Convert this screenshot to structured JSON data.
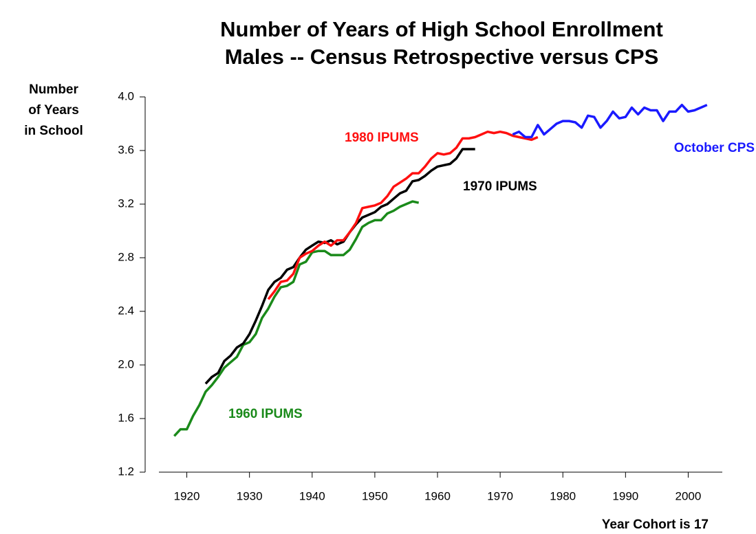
{
  "chart_data": {
    "type": "line",
    "title": [
      "Number of Years of High School Enrollment",
      "Males -- Census Retrospective versus CPS"
    ],
    "ylabel": [
      "Number",
      "of Years",
      "in School"
    ],
    "xlabel": "Year Cohort is 17",
    "xlim": [
      1915,
      2005
    ],
    "xticks": [
      1920,
      1930,
      1940,
      1950,
      1960,
      1970,
      1980,
      1990,
      2000
    ],
    "ylim": [
      1.2,
      4.0
    ],
    "yticks": [
      1.2,
      1.6,
      {
        "value": 2,
        "label": "2.0"
      },
      2.4,
      2.8,
      3.2,
      3.6,
      {
        "value": 4,
        "label": "4.0"
      }
    ],
    "grid": false,
    "series": [
      {
        "name": "1960 IPUMS",
        "color": "#1a8a1a",
        "x": [
          1918,
          1919,
          1920,
          1921,
          1922,
          1923,
          1924,
          1925,
          1926,
          1927,
          1928,
          1929,
          1930,
          1931,
          1932,
          1933,
          1934,
          1935,
          1936,
          1937,
          1938,
          1939,
          1940,
          1941,
          1942,
          1943,
          1944,
          1945,
          1946,
          1947,
          1948,
          1949,
          1950,
          1951,
          1952,
          1953,
          1954,
          1955,
          1956,
          1957
        ],
        "values": [
          1.47,
          1.52,
          1.52,
          1.62,
          1.7,
          1.8,
          1.85,
          1.91,
          1.98,
          2.02,
          2.06,
          2.15,
          2.17,
          2.23,
          2.35,
          2.42,
          2.51,
          2.58,
          2.59,
          2.62,
          2.75,
          2.77,
          2.84,
          2.85,
          2.85,
          2.82,
          2.82,
          2.82,
          2.86,
          2.94,
          3.03,
          3.06,
          3.08,
          3.08,
          3.13,
          3.15,
          3.18,
          3.2,
          3.22,
          3.21
        ]
      },
      {
        "name": "1970 IPUMS",
        "color": "#000000",
        "x": [
          1923,
          1924,
          1925,
          1926,
          1927,
          1928,
          1929,
          1930,
          1931,
          1932,
          1933,
          1934,
          1935,
          1936,
          1937,
          1938,
          1939,
          1940,
          1941,
          1942,
          1943,
          1944,
          1945,
          1946,
          1947,
          1948,
          1949,
          1950,
          1951,
          1952,
          1953,
          1954,
          1955,
          1956,
          1957,
          1958,
          1959,
          1960,
          1961,
          1962,
          1963,
          1964,
          1965,
          1966
        ],
        "values": [
          1.86,
          1.91,
          1.94,
          2.03,
          2.07,
          2.13,
          2.16,
          2.23,
          2.33,
          2.44,
          2.56,
          2.62,
          2.65,
          2.71,
          2.73,
          2.8,
          2.86,
          2.89,
          2.92,
          2.91,
          2.93,
          2.9,
          2.92,
          2.99,
          3.05,
          3.1,
          3.12,
          3.14,
          3.18,
          3.2,
          3.24,
          3.28,
          3.3,
          3.37,
          3.38,
          3.41,
          3.45,
          3.48,
          3.49,
          3.5,
          3.54,
          3.61,
          3.61,
          3.61
        ]
      },
      {
        "name": "1980 IPUMS",
        "color": "#ff1010",
        "x": [
          1933,
          1934,
          1935,
          1936,
          1937,
          1938,
          1939,
          1940,
          1941,
          1942,
          1943,
          1944,
          1945,
          1946,
          1947,
          1948,
          1949,
          1950,
          1951,
          1952,
          1953,
          1954,
          1955,
          1956,
          1957,
          1958,
          1959,
          1960,
          1961,
          1962,
          1963,
          1964,
          1965,
          1966,
          1967,
          1968,
          1969,
          1970,
          1971,
          1972,
          1973,
          1974,
          1975,
          1976
        ],
        "values": [
          2.49,
          2.55,
          2.62,
          2.63,
          2.68,
          2.8,
          2.83,
          2.85,
          2.89,
          2.92,
          2.89,
          2.93,
          2.93,
          2.99,
          3.06,
          3.17,
          3.18,
          3.19,
          3.21,
          3.26,
          3.33,
          3.36,
          3.39,
          3.43,
          3.43,
          3.48,
          3.54,
          3.58,
          3.57,
          3.58,
          3.62,
          3.69,
          3.69,
          3.7,
          3.72,
          3.74,
          3.73,
          3.74,
          3.73,
          3.71,
          3.7,
          3.69,
          3.68,
          3.7
        ]
      },
      {
        "name": "October CPS",
        "color": "#1a1aff",
        "x": [
          1972,
          1973,
          1974,
          1975,
          1976,
          1977,
          1978,
          1979,
          1980,
          1981,
          1982,
          1983,
          1984,
          1985,
          1986,
          1987,
          1988,
          1989,
          1990,
          1991,
          1992,
          1993,
          1994,
          1995,
          1996,
          1997,
          1998,
          1999,
          2000,
          2001,
          2002,
          2003
        ],
        "values": [
          3.72,
          3.74,
          3.7,
          3.7,
          3.79,
          3.72,
          3.76,
          3.8,
          3.82,
          3.82,
          3.81,
          3.77,
          3.86,
          3.85,
          3.77,
          3.82,
          3.89,
          3.84,
          3.85,
          3.92,
          3.87,
          3.92,
          3.9,
          3.9,
          3.82,
          3.89,
          3.89,
          3.94,
          3.89,
          3.9,
          3.92,
          3.94
        ]
      }
    ]
  }
}
